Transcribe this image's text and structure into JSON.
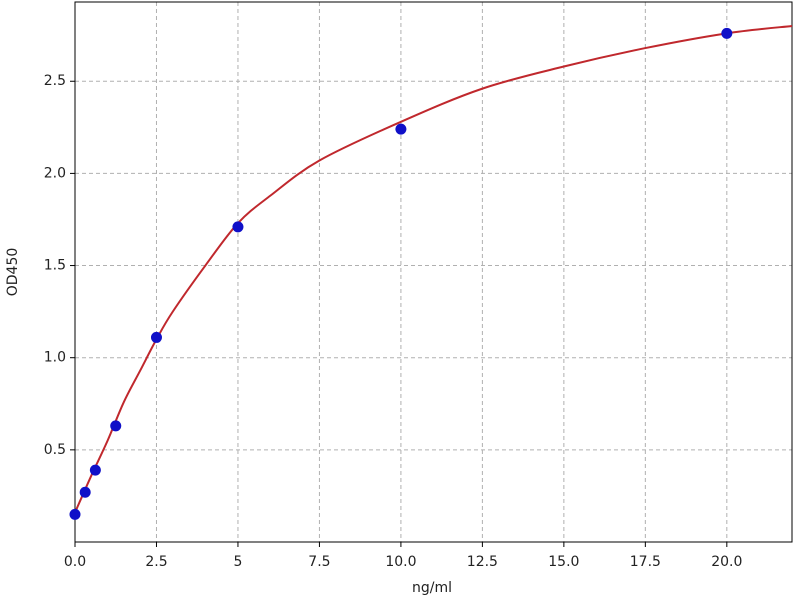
{
  "chart_data": {
    "type": "scatter",
    "x_label": "ng/ml",
    "y_label": "OD450",
    "xlim": [
      0,
      22
    ],
    "ylim": [
      0,
      2.93
    ],
    "xticks": [
      {
        "value": 0,
        "label": "0.0"
      },
      2.5,
      5,
      7.5,
      {
        "value": 10,
        "label": "10.0"
      },
      12.5,
      {
        "value": 15,
        "label": "15.0"
      },
      17.5,
      {
        "value": 20,
        "label": "20.0"
      }
    ],
    "yticks": [
      0.5,
      {
        "value": 1,
        "label": "1.0"
      },
      1.5,
      {
        "value": 2,
        "label": "2.0"
      },
      2.5
    ],
    "xticks_labels_fix": null,
    "grid": true,
    "series": [
      {
        "type": "scatter",
        "color": "#1010c8",
        "x": [
          0,
          0.3125,
          0.625,
          1.25,
          2.5,
          5,
          10,
          20
        ],
        "values": [
          0.15,
          0.27,
          0.39,
          0.63,
          1.11,
          1.71,
          2.24,
          2.76
        ]
      },
      {
        "type": "line",
        "color": "#c0282d",
        "x": [
          0,
          0.5,
          1,
          1.5,
          2,
          2.5,
          3,
          4,
          5,
          6,
          7.5,
          10,
          12.5,
          15,
          17.5,
          20,
          22
        ],
        "values": [
          0.16,
          0.36,
          0.55,
          0.76,
          0.93,
          1.1,
          1.25,
          1.5,
          1.73,
          1.88,
          2.07,
          2.28,
          2.46,
          2.58,
          2.68,
          2.76,
          2.8
        ]
      }
    ]
  }
}
